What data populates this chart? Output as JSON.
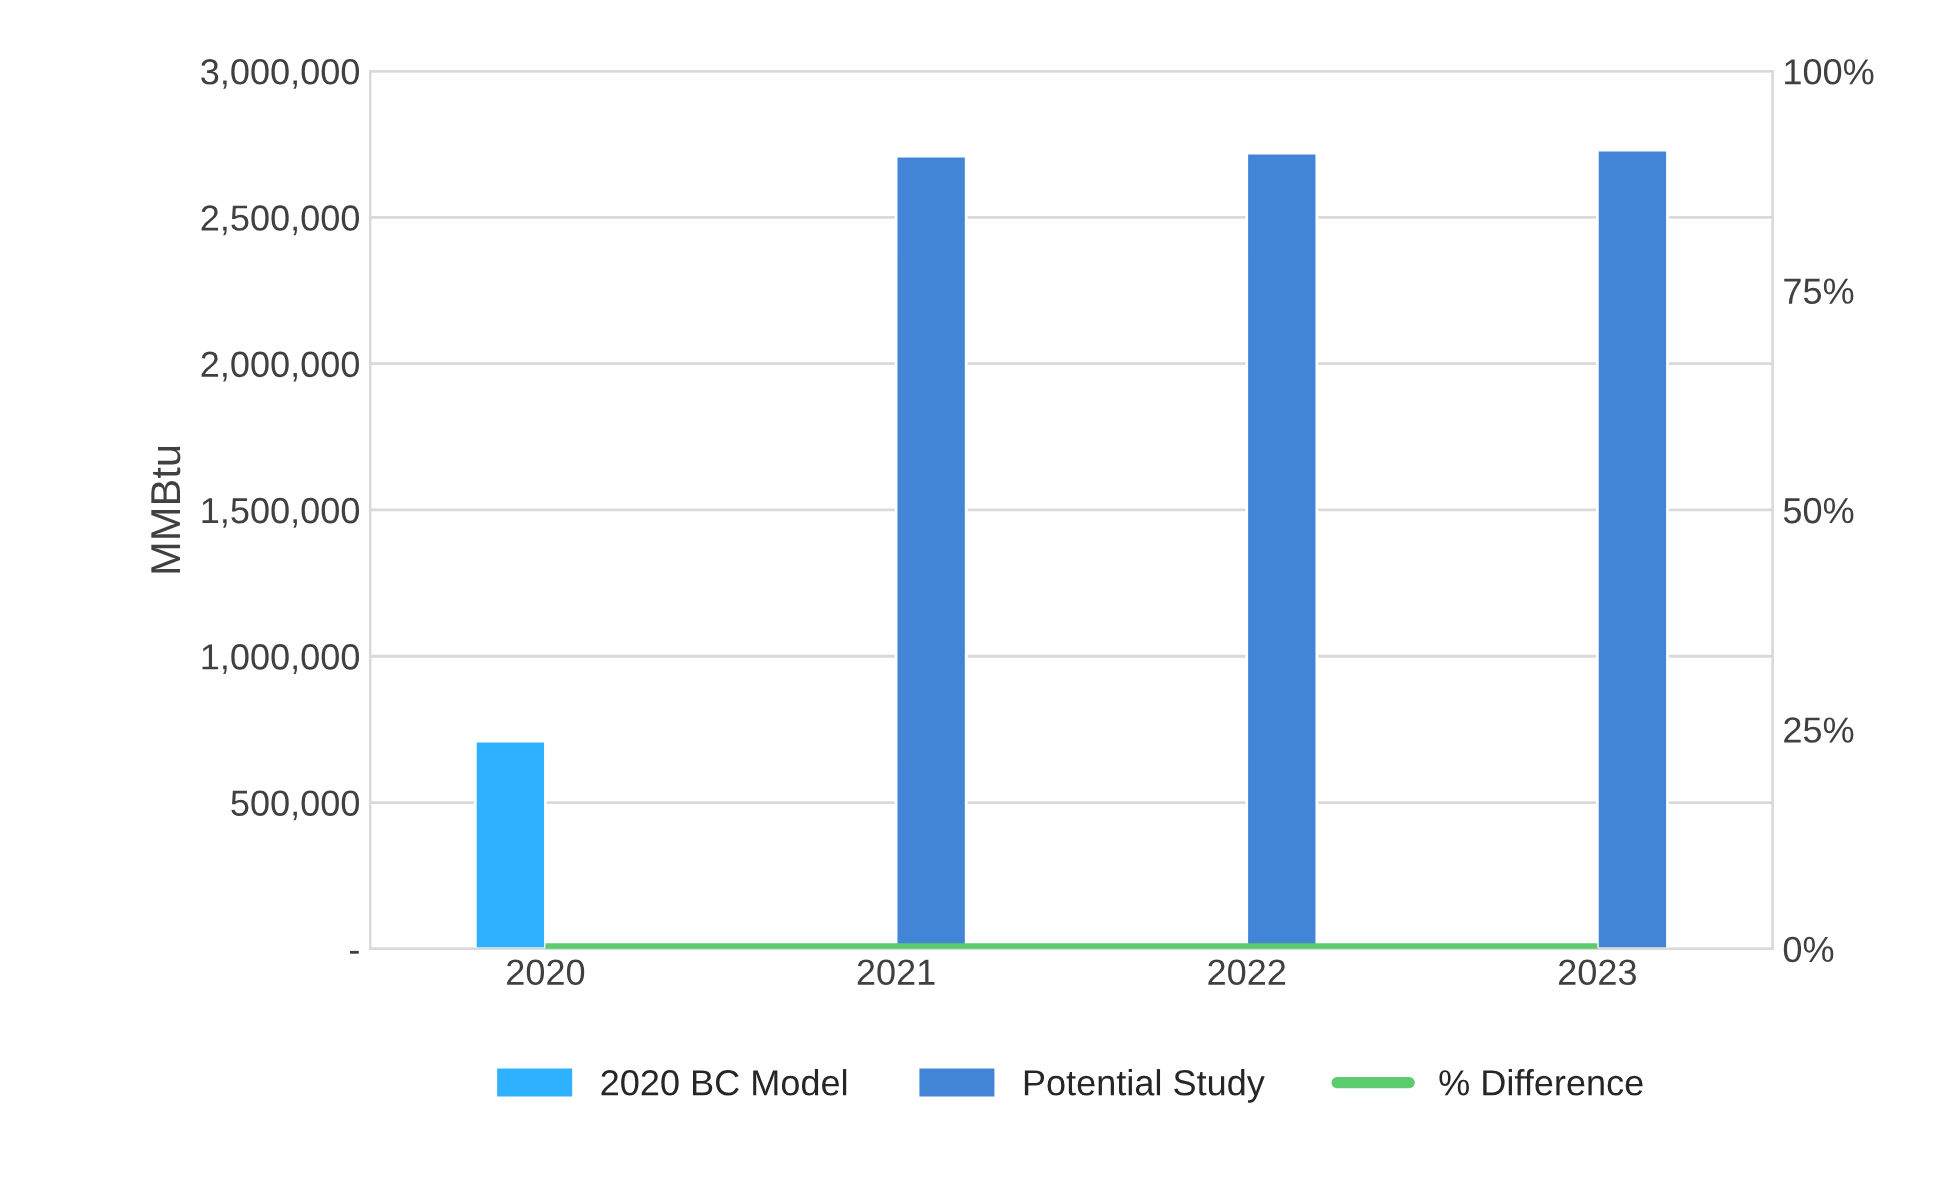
{
  "chart_data": {
    "type": "bar",
    "ylabel": "MMBtu",
    "categories": [
      "2020",
      "2021",
      "2022",
      "2023"
    ],
    "series": [
      {
        "name": "2020 BC Model",
        "color": "#2eb2ff",
        "values": [
          710000,
          null,
          null,
          null
        ]
      },
      {
        "name": "Potential Study",
        "color": "#4285d6",
        "values": [
          null,
          2710000,
          2720000,
          2730000
        ]
      },
      {
        "name": "% Difference",
        "type": "line",
        "axis": "y2",
        "color": "#5ccc6e",
        "values": [
          0,
          0,
          0,
          0
        ]
      }
    ],
    "ylim": [
      0,
      3000000
    ],
    "yticks": [
      {
        "value": 0,
        "label": "-"
      },
      {
        "value": 500000,
        "label": "500,000"
      },
      {
        "value": 1000000,
        "label": "1,000,000"
      },
      {
        "value": 1500000,
        "label": "1,500,000"
      },
      {
        "value": 2000000,
        "label": "2,000,000"
      },
      {
        "value": 2500000,
        "label": "2,500,000"
      },
      {
        "value": 3000000,
        "label": "3,000,000"
      }
    ],
    "y2lim": [
      0,
      100
    ],
    "y2ticks": [
      {
        "value": 0,
        "label": "0%"
      },
      {
        "value": 25,
        "label": "25%"
      },
      {
        "value": 50,
        "label": "50%"
      },
      {
        "value": 75,
        "label": "75%"
      },
      {
        "value": 100,
        "label": "100%"
      }
    ],
    "grid": "y",
    "legend": "bottom"
  }
}
